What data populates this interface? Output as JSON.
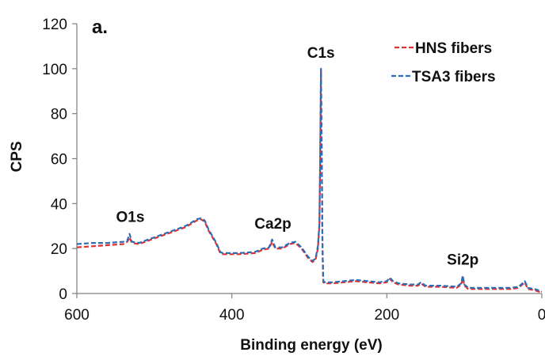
{
  "chart_data": {
    "type": "line",
    "panel_label": "a.",
    "title": "",
    "xlabel": "Binding energy (eV)",
    "ylabel": "CPS",
    "xlim": [
      600,
      0
    ],
    "ylim": [
      0,
      120
    ],
    "x_reversed": true,
    "xticks": [
      600,
      400,
      200,
      0
    ],
    "yticks": [
      0,
      20,
      40,
      60,
      80,
      100,
      120
    ],
    "grid": false,
    "legend_position": "top-right",
    "peak_labels": [
      {
        "text": "O1s",
        "x": 531,
        "y": 27
      },
      {
        "text": "Ca2p",
        "x": 347,
        "y": 24
      },
      {
        "text": "C1s",
        "x": 285,
        "y": 100
      },
      {
        "text": "Si2p",
        "x": 102,
        "y": 8
      }
    ],
    "series": [
      {
        "name": "HNS fibers",
        "color": "#e03030",
        "x": [
          600,
          580,
          560,
          540,
          535,
          532,
          529,
          520,
          500,
          480,
          460,
          445,
          440,
          435,
          430,
          420,
          415,
          412,
          405,
          390,
          370,
          360,
          352,
          348,
          344,
          335,
          325,
          318,
          310,
          302,
          296,
          292,
          289,
          287,
          286,
          285,
          284,
          283,
          282,
          280,
          270,
          255,
          240,
          225,
          210,
          200,
          196,
          192,
          185,
          170,
          160,
          156,
          150,
          130,
          110,
          104,
          102,
          100,
          95,
          80,
          60,
          40,
          30,
          25,
          22,
          18,
          10,
          5,
          0
        ],
        "values": [
          20.5,
          21,
          21.5,
          22,
          23,
          25,
          22.5,
          22,
          24.5,
          27,
          29.5,
          32.5,
          33,
          32,
          28,
          22,
          18,
          17.5,
          17.5,
          17.5,
          18,
          19.5,
          20,
          23,
          20,
          20,
          22,
          22.5,
          20,
          16,
          14,
          15,
          20,
          30,
          60,
          99.5,
          60,
          20,
          5,
          4.5,
          4.5,
          5,
          5.5,
          5,
          4.5,
          5,
          6.5,
          5,
          4,
          3.5,
          3.5,
          4.5,
          3,
          3,
          2.5,
          4,
          7,
          3.5,
          2,
          2,
          2,
          2,
          2.5,
          4,
          5,
          2,
          1.5,
          1,
          0.3
        ]
      },
      {
        "name": "TSA3 fibers",
        "color": "#2e6db4",
        "x": [
          600,
          580,
          560,
          540,
          535,
          532,
          529,
          520,
          500,
          480,
          460,
          445,
          440,
          435,
          430,
          420,
          415,
          412,
          405,
          390,
          370,
          360,
          352,
          348,
          344,
          335,
          325,
          318,
          310,
          302,
          296,
          292,
          289,
          287,
          286,
          285,
          284,
          283,
          282,
          280,
          270,
          255,
          240,
          225,
          210,
          200,
          196,
          192,
          185,
          170,
          160,
          156,
          150,
          130,
          110,
          104,
          102,
          100,
          95,
          80,
          60,
          40,
          30,
          25,
          22,
          18,
          10,
          5,
          0
        ],
        "values": [
          22,
          22.5,
          22.5,
          23,
          23.5,
          26.5,
          23,
          22.5,
          25,
          27.5,
          30,
          33,
          33.5,
          32.5,
          28.5,
          22.5,
          18.5,
          18,
          18,
          18,
          18.5,
          20,
          20.5,
          24,
          20.5,
          20.5,
          22.5,
          23,
          20.5,
          16.5,
          14.5,
          15.5,
          21,
          31,
          61,
          100,
          61,
          21,
          5.5,
          5,
          5,
          5.5,
          6,
          5.5,
          5,
          5.5,
          7,
          5.5,
          4.5,
          4,
          4,
          5,
          3.5,
          3.5,
          3,
          4.5,
          8,
          4,
          2.5,
          2.5,
          2.5,
          2.5,
          3,
          4.5,
          5.5,
          2.5,
          2,
          1.5,
          0.8
        ]
      }
    ]
  }
}
